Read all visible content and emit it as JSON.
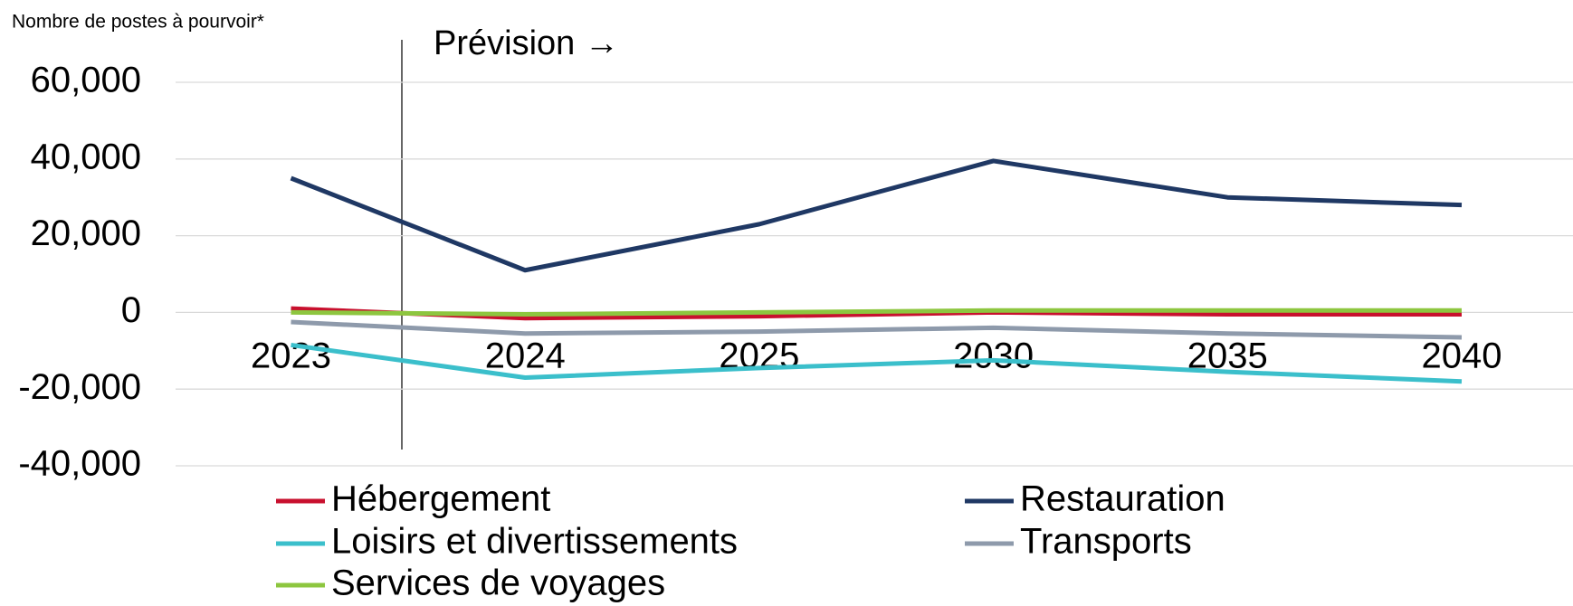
{
  "chart_data": {
    "type": "line",
    "y_axis_label": "Nombre de postes à pourvoir*",
    "annotation": "Prévision →",
    "categories": [
      "2023",
      "2024",
      "2025",
      "2030",
      "2035",
      "2040"
    ],
    "series": [
      {
        "name": "Hébergement",
        "color": "#c8102e",
        "values": [
          1000,
          -1500,
          -1000,
          0,
          -500,
          -500
        ]
      },
      {
        "name": "Restauration",
        "color": "#1f3864",
        "values": [
          35000,
          11000,
          23000,
          39500,
          30000,
          28000
        ]
      },
      {
        "name": "Loisirs et divertissements",
        "color": "#3bbfcb",
        "values": [
          -8500,
          -17000,
          -14500,
          -12500,
          -15500,
          -18000
        ]
      },
      {
        "name": "Transports",
        "color": "#8e9aab",
        "values": [
          -2500,
          -5500,
          -5000,
          -4000,
          -5500,
          -6500
        ]
      },
      {
        "name": "Services de voyages",
        "color": "#8dc63f",
        "values": [
          0,
          -500,
          0,
          500,
          500,
          500
        ]
      }
    ],
    "ylim": [
      -40000,
      60000
    ],
    "yticks": [
      {
        "value": -40000,
        "label": "-40,000"
      },
      {
        "value": -20000,
        "label": "-20,000"
      },
      0,
      {
        "value": 20000,
        "label": "20,000"
      },
      {
        "value": 40000,
        "label": "40,000"
      },
      {
        "value": 60000,
        "label": "60,000"
      }
    ],
    "grid": true
  }
}
